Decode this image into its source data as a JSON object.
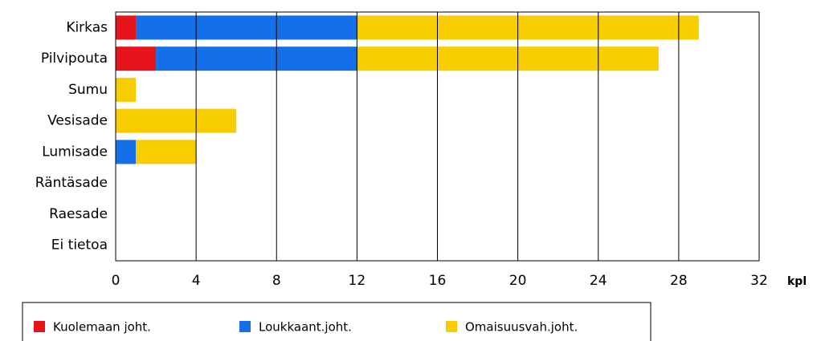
{
  "chart_data": {
    "type": "stacked_barh",
    "categories": [
      "Kirkas",
      "Pilvipouta",
      "Sumu",
      "Vesisade",
      "Lumisade",
      "Räntäsade",
      "Raesade",
      "Ei tietoa"
    ],
    "series": [
      {
        "name": "Kuolemaan joht.",
        "color": "#e8141c",
        "values": [
          1,
          2,
          0,
          0,
          0,
          0,
          0,
          0
        ]
      },
      {
        "name": "Loukkaant.joht.",
        "color": "#1470e8",
        "values": [
          11,
          10,
          0,
          0,
          1,
          0,
          0,
          0
        ]
      },
      {
        "name": "Omaisuusvah.joht.",
        "color": "#f7cd00",
        "values": [
          17,
          15,
          1,
          6,
          3,
          0,
          0,
          0
        ]
      }
    ],
    "xlim": [
      0,
      32
    ],
    "xticks": [
      0,
      4,
      8,
      12,
      16,
      20,
      24,
      28,
      32
    ],
    "x_label": "kpl",
    "grid": true,
    "legend": "bottom"
  }
}
